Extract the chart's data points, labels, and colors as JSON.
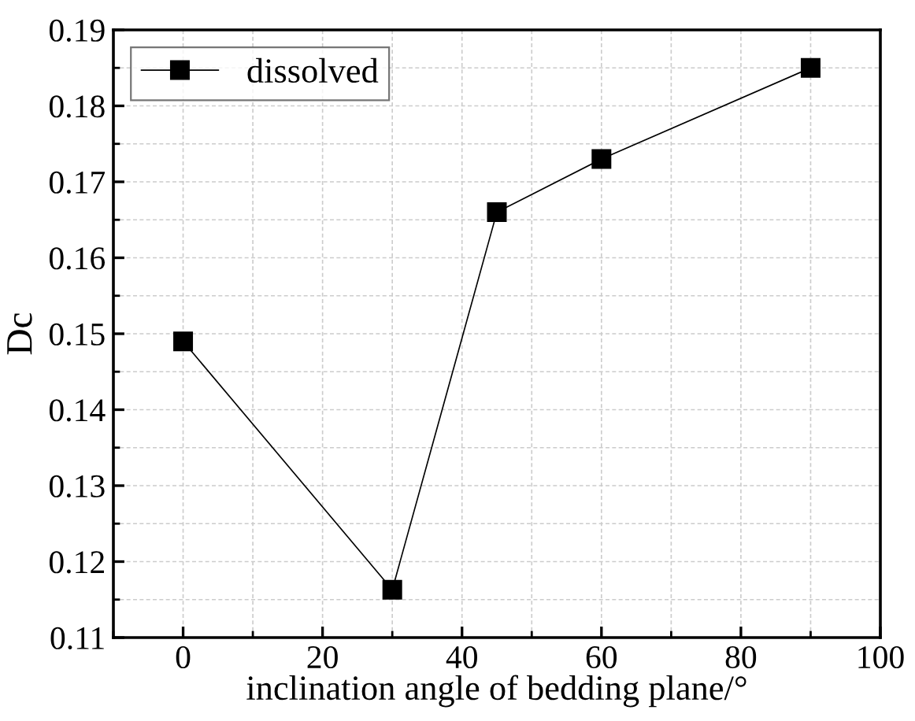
{
  "chart_data": {
    "type": "line",
    "xlabel": "inclination angle of bedding plane/°",
    "ylabel": "Dc",
    "x": [
      0,
      30,
      45,
      60,
      90
    ],
    "series": [
      {
        "name": "dissolved",
        "color": "#000000",
        "values": [
          0.149,
          0.1163,
          0.166,
          0.173,
          0.185
        ]
      }
    ],
    "xlim": [
      -10,
      100
    ],
    "xticks": [
      0,
      20,
      40,
      60,
      80,
      100
    ],
    "ylim": [
      0.11,
      0.19
    ],
    "yticks": [
      {
        "value": 0.11,
        "label": "0.11"
      },
      {
        "value": 0.12,
        "label": "0.12"
      },
      {
        "value": 0.13,
        "label": "0.13"
      },
      {
        "value": 0.14,
        "label": "0.14"
      },
      {
        "value": 0.15,
        "label": "0.15"
      },
      {
        "value": 0.16,
        "label": "0.16"
      },
      {
        "value": 0.17,
        "label": "0.17"
      },
      {
        "value": 0.18,
        "label": "0.18"
      },
      {
        "value": 0.19,
        "label": "0.19"
      }
    ],
    "grid": true,
    "legend": "top left",
    "marker": "square",
    "line_style": "solid"
  }
}
